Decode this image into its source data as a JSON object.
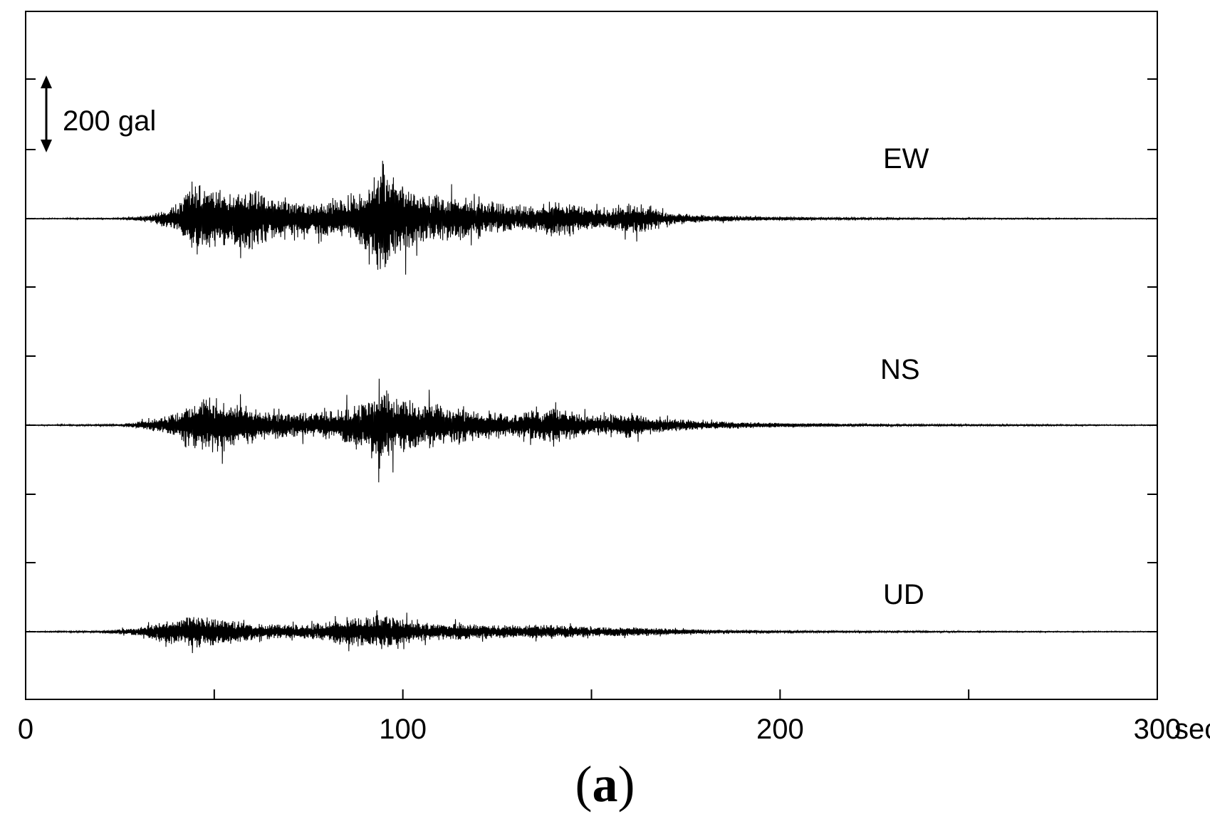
{
  "chart_data": {
    "type": "line",
    "x_unit_label": "sec",
    "xlim": [
      0,
      300
    ],
    "x_ticks": [
      0,
      100,
      200,
      300
    ],
    "x_ticks_minor": [
      50,
      150,
      250
    ],
    "scale_bar": {
      "value": 200,
      "label": "200 gal"
    },
    "y_range_per_trace_gal": [
      -200,
      200
    ],
    "series": [
      {
        "name": "EW",
        "envelope": [
          [
            0,
            1
          ],
          [
            25,
            2
          ],
          [
            33,
            10
          ],
          [
            40,
            40
          ],
          [
            45,
            110
          ],
          [
            50,
            90
          ],
          [
            55,
            85
          ],
          [
            60,
            95
          ],
          [
            65,
            60
          ],
          [
            70,
            50
          ],
          [
            75,
            45
          ],
          [
            80,
            55
          ],
          [
            85,
            60
          ],
          [
            90,
            90
          ],
          [
            94,
            180
          ],
          [
            97,
            130
          ],
          [
            100,
            110
          ],
          [
            105,
            75
          ],
          [
            110,
            70
          ],
          [
            115,
            65
          ],
          [
            120,
            55
          ],
          [
            125,
            45
          ],
          [
            130,
            40
          ],
          [
            135,
            40
          ],
          [
            140,
            55
          ],
          [
            145,
            45
          ],
          [
            150,
            30
          ],
          [
            155,
            30
          ],
          [
            160,
            45
          ],
          [
            165,
            40
          ],
          [
            170,
            18
          ],
          [
            180,
            10
          ],
          [
            195,
            6
          ],
          [
            210,
            4
          ],
          [
            240,
            2
          ],
          [
            300,
            1
          ]
        ]
      },
      {
        "name": "NS",
        "envelope": [
          [
            0,
            1
          ],
          [
            25,
            3
          ],
          [
            33,
            15
          ],
          [
            40,
            35
          ],
          [
            45,
            80
          ],
          [
            48,
            90
          ],
          [
            52,
            80
          ],
          [
            55,
            75
          ],
          [
            60,
            50
          ],
          [
            65,
            40
          ],
          [
            70,
            35
          ],
          [
            75,
            40
          ],
          [
            80,
            40
          ],
          [
            85,
            55
          ],
          [
            90,
            75
          ],
          [
            94,
            130
          ],
          [
            97,
            90
          ],
          [
            100,
            80
          ],
          [
            105,
            70
          ],
          [
            110,
            65
          ],
          [
            115,
            55
          ],
          [
            120,
            45
          ],
          [
            125,
            40
          ],
          [
            130,
            35
          ],
          [
            135,
            45
          ],
          [
            140,
            55
          ],
          [
            145,
            40
          ],
          [
            150,
            30
          ],
          [
            155,
            30
          ],
          [
            160,
            40
          ],
          [
            165,
            25
          ],
          [
            170,
            20
          ],
          [
            180,
            12
          ],
          [
            195,
            8
          ],
          [
            210,
            5
          ],
          [
            240,
            3
          ],
          [
            300,
            1
          ]
        ]
      },
      {
        "name": "UD",
        "envelope": [
          [
            0,
            1
          ],
          [
            20,
            3
          ],
          [
            30,
            12
          ],
          [
            35,
            30
          ],
          [
            40,
            35
          ],
          [
            45,
            50
          ],
          [
            48,
            45
          ],
          [
            52,
            40
          ],
          [
            55,
            35
          ],
          [
            60,
            25
          ],
          [
            65,
            22
          ],
          [
            70,
            20
          ],
          [
            75,
            22
          ],
          [
            80,
            28
          ],
          [
            85,
            45
          ],
          [
            90,
            45
          ],
          [
            94,
            55
          ],
          [
            97,
            45
          ],
          [
            100,
            40
          ],
          [
            105,
            28
          ],
          [
            110,
            26
          ],
          [
            115,
            25
          ],
          [
            120,
            22
          ],
          [
            125,
            20
          ],
          [
            130,
            18
          ],
          [
            135,
            22
          ],
          [
            140,
            22
          ],
          [
            145,
            18
          ],
          [
            150,
            14
          ],
          [
            160,
            14
          ],
          [
            165,
            12
          ],
          [
            170,
            10
          ],
          [
            180,
            6
          ],
          [
            195,
            4
          ],
          [
            210,
            3
          ],
          [
            240,
            2
          ],
          [
            300,
            1
          ]
        ]
      }
    ]
  },
  "caption": {
    "open": "(",
    "letter": "a",
    "close": ")"
  }
}
